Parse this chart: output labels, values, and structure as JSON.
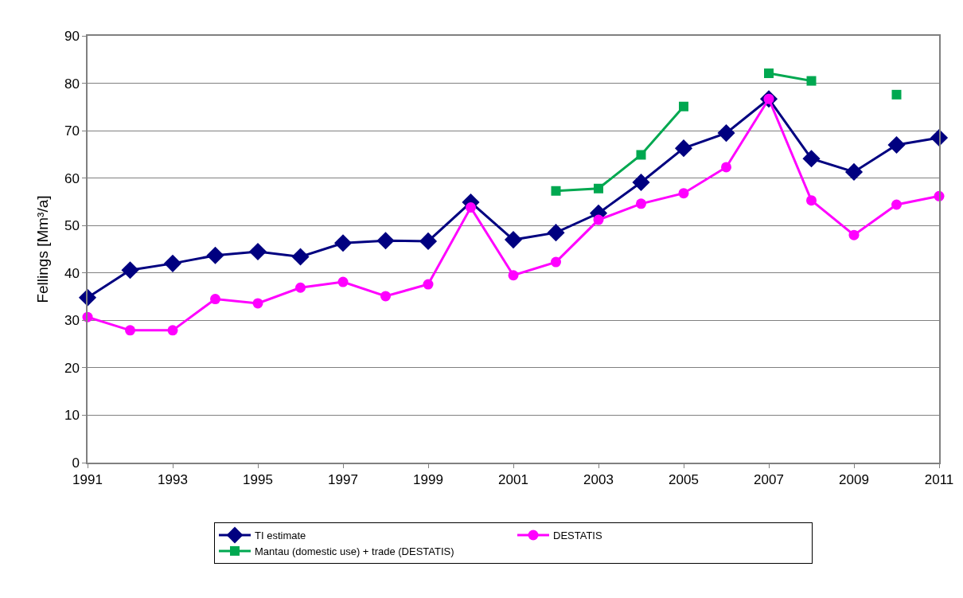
{
  "chart_data": {
    "type": "line",
    "ylabel": "Fellings [Mm³/a]",
    "x": [
      1991,
      1992,
      1993,
      1994,
      1995,
      1996,
      1997,
      1998,
      1999,
      2000,
      2001,
      2002,
      2003,
      2004,
      2005,
      2006,
      2007,
      2008,
      2009,
      2010,
      2011
    ],
    "series": [
      {
        "name": "TI estimate",
        "color": "#000080",
        "marker": "diamond",
        "values": [
          34.8,
          40.6,
          42.0,
          43.7,
          44.5,
          43.4,
          46.3,
          46.8,
          46.7,
          54.9,
          47.0,
          48.5,
          52.6,
          59.1,
          66.3,
          69.5,
          76.7,
          64.1,
          61.3,
          67.0,
          68.5
        ]
      },
      {
        "name": "DESTATIS",
        "color": "#ff00ff",
        "marker": "circle",
        "values": [
          30.7,
          27.9,
          27.9,
          34.5,
          33.6,
          36.9,
          38.1,
          35.1,
          37.6,
          53.8,
          39.5,
          42.3,
          51.2,
          54.6,
          56.8,
          62.3,
          76.7,
          55.3,
          48.0,
          54.4,
          56.2
        ]
      },
      {
        "name": "Mantau (domestic use) + trade (DESTATIS)",
        "color": "#00a850",
        "marker": "square",
        "values": [
          null,
          null,
          null,
          null,
          null,
          null,
          null,
          null,
          null,
          null,
          null,
          57.3,
          57.8,
          64.9,
          75.1,
          null,
          82.1,
          80.5,
          null,
          77.6,
          null
        ]
      }
    ],
    "xlim": [
      1991,
      2011
    ],
    "xticks": [
      1991,
      1993,
      1995,
      1997,
      1999,
      2001,
      2003,
      2005,
      2007,
      2009,
      2011
    ],
    "ylim": [
      0,
      90
    ],
    "yticks": [
      0,
      10,
      20,
      30,
      40,
      50,
      60,
      70,
      80,
      90
    ],
    "grid": "y",
    "legend": "bottom",
    "line_style": "solid"
  }
}
